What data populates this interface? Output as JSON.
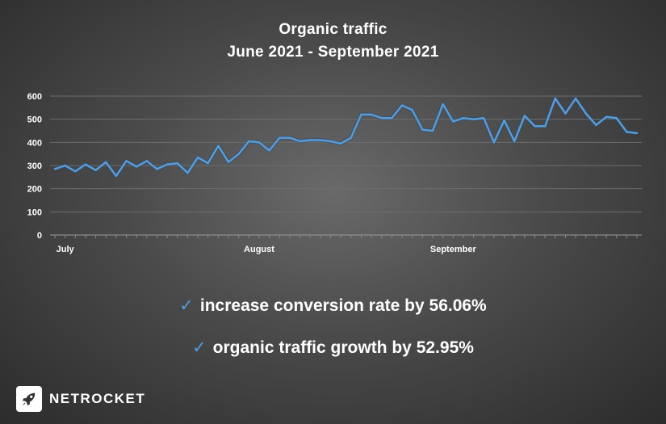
{
  "chart_data": {
    "type": "line",
    "title": "Organic traffic",
    "subtitle": "June 2021 - September 2021",
    "ylim": [
      0,
      600
    ],
    "yticks": [
      0,
      100,
      200,
      300,
      400,
      500,
      600
    ],
    "x_tick_labels": [
      {
        "label": "July",
        "index": 1
      },
      {
        "label": "August",
        "index": 20
      },
      {
        "label": "September",
        "index": 39
      }
    ],
    "grid": true,
    "line_color": "#5b9bd5",
    "series": [
      {
        "values": [
          285,
          300,
          275,
          305,
          280,
          315,
          255,
          320,
          295,
          320,
          285,
          305,
          310,
          268,
          335,
          310,
          385,
          315,
          350,
          405,
          400,
          365,
          420,
          420,
          405,
          410,
          410,
          405,
          395,
          420,
          520,
          520,
          505,
          505,
          560,
          540,
          455,
          450,
          565,
          490,
          505,
          500,
          505,
          400,
          495,
          405,
          515,
          470,
          470,
          590,
          525,
          590,
          525,
          475,
          510,
          505,
          445,
          440
        ]
      }
    ]
  },
  "stats": [
    {
      "check": "✓",
      "text": "increase conversion rate by 56.06%"
    },
    {
      "check": "✓",
      "text": "organic traffic growth by 52.95%"
    }
  ],
  "brand": {
    "name": "NETROCKET",
    "icon": "rocket-icon"
  }
}
